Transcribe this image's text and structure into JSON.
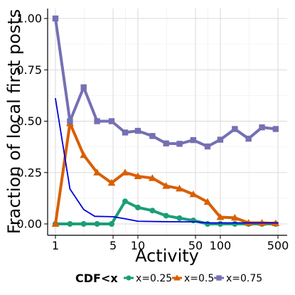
{
  "chart_data": {
    "type": "line",
    "xlabel": "Activity",
    "ylabel": "Fraction of local first posts",
    "x_scale": "log",
    "xlim": [
      1,
      500
    ],
    "ylim": [
      0,
      1
    ],
    "x_ticks": [
      1,
      5,
      10,
      50,
      100,
      500
    ],
    "x_tick_labels": [
      "1",
      "5",
      "10",
      "50",
      "100",
      "500"
    ],
    "y_ticks": [
      0,
      0.25,
      0.5,
      0.75,
      1
    ],
    "y_tick_labels": [
      "0.00",
      "0.25",
      "0.50",
      "0.75",
      "1.00"
    ],
    "grid": true,
    "legend": {
      "title": "CDF<x",
      "position": "bottom",
      "entries": [
        "x=0.25",
        "x=0.5",
        "x=0.75"
      ]
    },
    "x": [
      1,
      1.5,
      2.2,
      3.2,
      4.8,
      7,
      10,
      15,
      22,
      32,
      47,
      70,
      100,
      150,
      220,
      320,
      470
    ],
    "series": [
      {
        "name": "x=0.25",
        "color": "#1b9e77",
        "marker": "circle",
        "values": [
          0.0,
          0.0,
          0.0,
          0.0,
          0.0,
          0.11,
          0.08,
          0.065,
          0.04,
          0.028,
          0.017,
          0.0,
          0.0,
          0.0,
          0.0,
          0.0,
          0.0
        ]
      },
      {
        "name": "x=0.5",
        "color": "#d95f02",
        "marker": "triangle",
        "values": [
          0.0,
          0.49,
          0.335,
          0.25,
          0.2,
          0.25,
          0.232,
          0.223,
          0.185,
          0.172,
          0.144,
          0.107,
          0.033,
          0.03,
          0.005,
          0.005,
          0.003
        ]
      },
      {
        "name": "x=0.75",
        "color": "#7570b3",
        "marker": "square",
        "values": [
          1.0,
          0.5,
          0.665,
          0.5,
          0.5,
          0.445,
          0.453,
          0.428,
          0.392,
          0.39,
          0.408,
          0.377,
          0.41,
          0.462,
          0.415,
          0.47,
          0.462
        ]
      },
      {
        "color": "#0000dd",
        "marker": "none",
        "x": [
          1,
          1.5,
          2.2,
          3,
          4,
          5,
          7,
          10,
          20,
          50,
          70,
          100,
          500
        ],
        "values": [
          0.61,
          0.17,
          0.07,
          0.037,
          0.036,
          0.035,
          0.025,
          0.013,
          0.011,
          0.01,
          0.005,
          0.005,
          0.005
        ]
      }
    ]
  }
}
